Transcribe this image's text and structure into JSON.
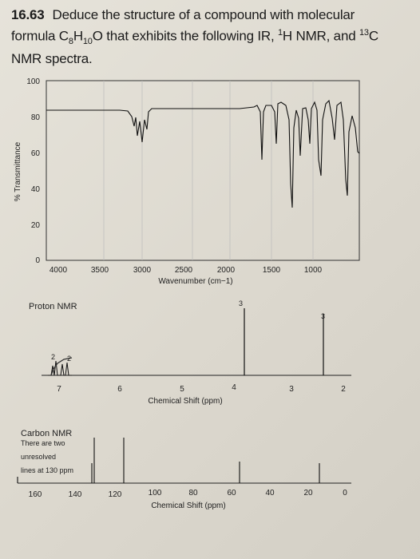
{
  "problem": {
    "number": "16.63",
    "line1": "Deduce the structure of a compound with molecular",
    "line2_prefix": "formula C",
    "c_sub": "8",
    "h_mid": "H",
    "h_sub": "10",
    "line2_mid": "O that exhibits the following IR, ",
    "h_sup": "1",
    "line2_mid2": "H NMR, and ",
    "c_sup": "13",
    "line2_end": "C",
    "line3": "NMR spectra."
  },
  "ir": {
    "ylabel": "% Transmittance",
    "yticks": [
      "100",
      "80",
      "60",
      "40",
      "20",
      "0"
    ],
    "xticks": [
      "4000",
      "3500",
      "3000",
      "2500",
      "2000",
      "1500",
      "1000"
    ],
    "xlabel": "Wavenumber (cm−1)"
  },
  "proton": {
    "title": "Proton NMR",
    "xticks": [
      "7",
      "6",
      "5",
      "4",
      "3",
      "2"
    ],
    "xlabel": "Chemical Shift (ppm)",
    "peak_labels": [
      "2",
      "2",
      "3",
      "3"
    ]
  },
  "carbon": {
    "title": "Carbon NMR",
    "note_line1": "There are two",
    "note_line2": "unresolved",
    "note_line3": "lines at 130 ppm",
    "xticks": [
      "160",
      "140",
      "120",
      "100",
      "80",
      "60",
      "40",
      "20",
      "0"
    ],
    "xlabel": "Chemical Shift (ppm)"
  }
}
